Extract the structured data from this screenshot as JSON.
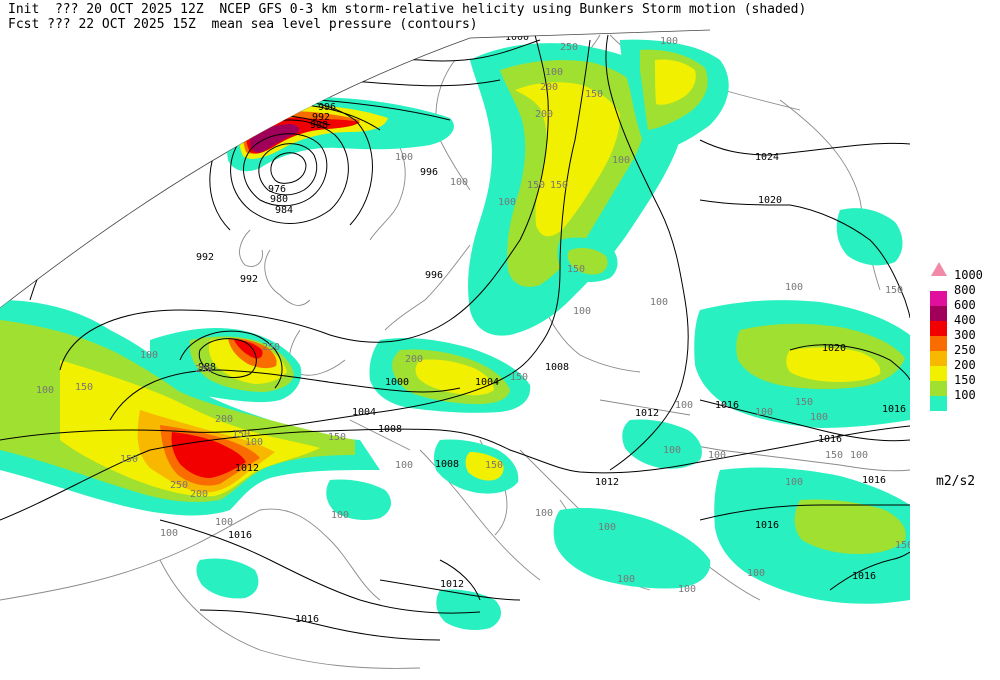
{
  "header": {
    "line1": "Init  ??? 20 OCT 2025 12Z  NCEP GFS 0-3 km storm-relative helicity using Bunkers Storm motion (shaded)",
    "line2": "Fcst ??? 22 OCT 2025 15Z  mean sea level pressure (contours)"
  },
  "legend": {
    "units": "m2/s2",
    "levels": [
      {
        "label": "1000",
        "color": "#f08aa8"
      },
      {
        "label": "800",
        "color": "#e0109c"
      },
      {
        "label": "600",
        "color": "#a0005a"
      },
      {
        "label": "400",
        "color": "#f20000"
      },
      {
        "label": "300",
        "color": "#f86c00"
      },
      {
        "label": "250",
        "color": "#f8b800"
      },
      {
        "label": "200",
        "color": "#f0f000"
      },
      {
        "label": "150",
        "color": "#a0e030"
      },
      {
        "label": "100",
        "color": "#28f0c0"
      }
    ]
  },
  "isobar_labels": [
    "1000",
    "1012",
    "1008",
    "1004",
    "1000",
    "996",
    "992",
    "988",
    "984",
    "980",
    "976",
    "1020",
    "1024",
    "992",
    "992",
    "996",
    "996",
    "988",
    "1000",
    "1004",
    "1008",
    "1004",
    "1008",
    "1008",
    "1012",
    "1016",
    "1012",
    "1016",
    "1016",
    "1016",
    "1016",
    "1016",
    "1012",
    "1012",
    "1016",
    "1020",
    "1016"
  ],
  "helicity_labels": [
    "100",
    "150",
    "200",
    "250",
    "200",
    "150",
    "100",
    "150",
    "100",
    "100",
    "150",
    "200",
    "250",
    "100",
    "150",
    "200",
    "150",
    "100",
    "100",
    "150",
    "200",
    "100",
    "150",
    "100",
    "200",
    "250",
    "150",
    "100",
    "150",
    "100",
    "100",
    "100",
    "100",
    "150",
    "100",
    "100",
    "100",
    "150",
    "100",
    "100",
    "100",
    "100",
    "100",
    "100",
    "150",
    "100",
    "100",
    "100",
    "100",
    "100",
    "150"
  ]
}
